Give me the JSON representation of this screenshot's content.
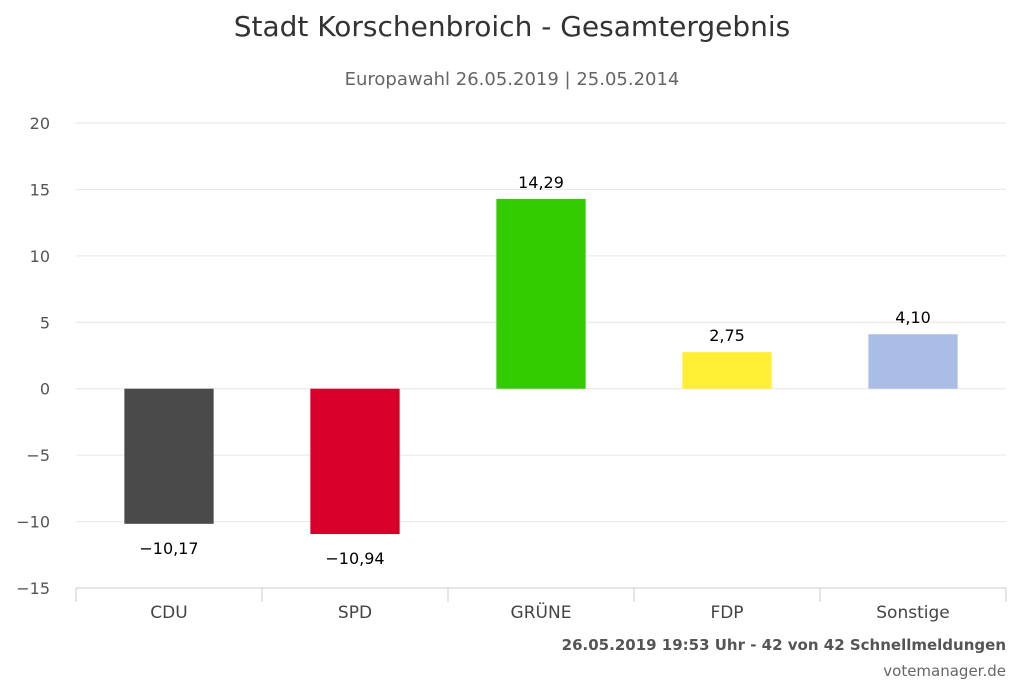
{
  "chart_data": {
    "type": "bar",
    "title": "Stadt Korschenbroich - Gesamtergebnis",
    "subtitle": "Europawahl 26.05.2019 | 25.05.2014",
    "xlabel": "",
    "ylabel": "",
    "categories": [
      "CDU",
      "SPD",
      "GRÜNE",
      "FDP",
      "Sonstige"
    ],
    "values": [
      -10.17,
      -10.94,
      14.29,
      2.75,
      4.1
    ],
    "value_labels": [
      "-10,17",
      "-10,94",
      "14,29",
      "2,75",
      "4,10"
    ],
    "colors": [
      "#4a4a4a",
      "#d8002a",
      "#33cc00",
      "#ffee33",
      "#aabde6"
    ],
    "ylim": [
      -15,
      20
    ],
    "yticks": [
      20,
      15,
      10,
      5,
      0,
      -5,
      -10,
      -15
    ],
    "ytick_labels": [
      "20",
      "15",
      "10",
      "5",
      "0",
      "−5",
      "−10",
      "−15"
    ],
    "grid": true,
    "legend": "none"
  },
  "footer": {
    "credit": "26.05.2019 19:53 Uhr - 42 von 42 Schnellmeldungen",
    "source": "votemanager.de"
  }
}
